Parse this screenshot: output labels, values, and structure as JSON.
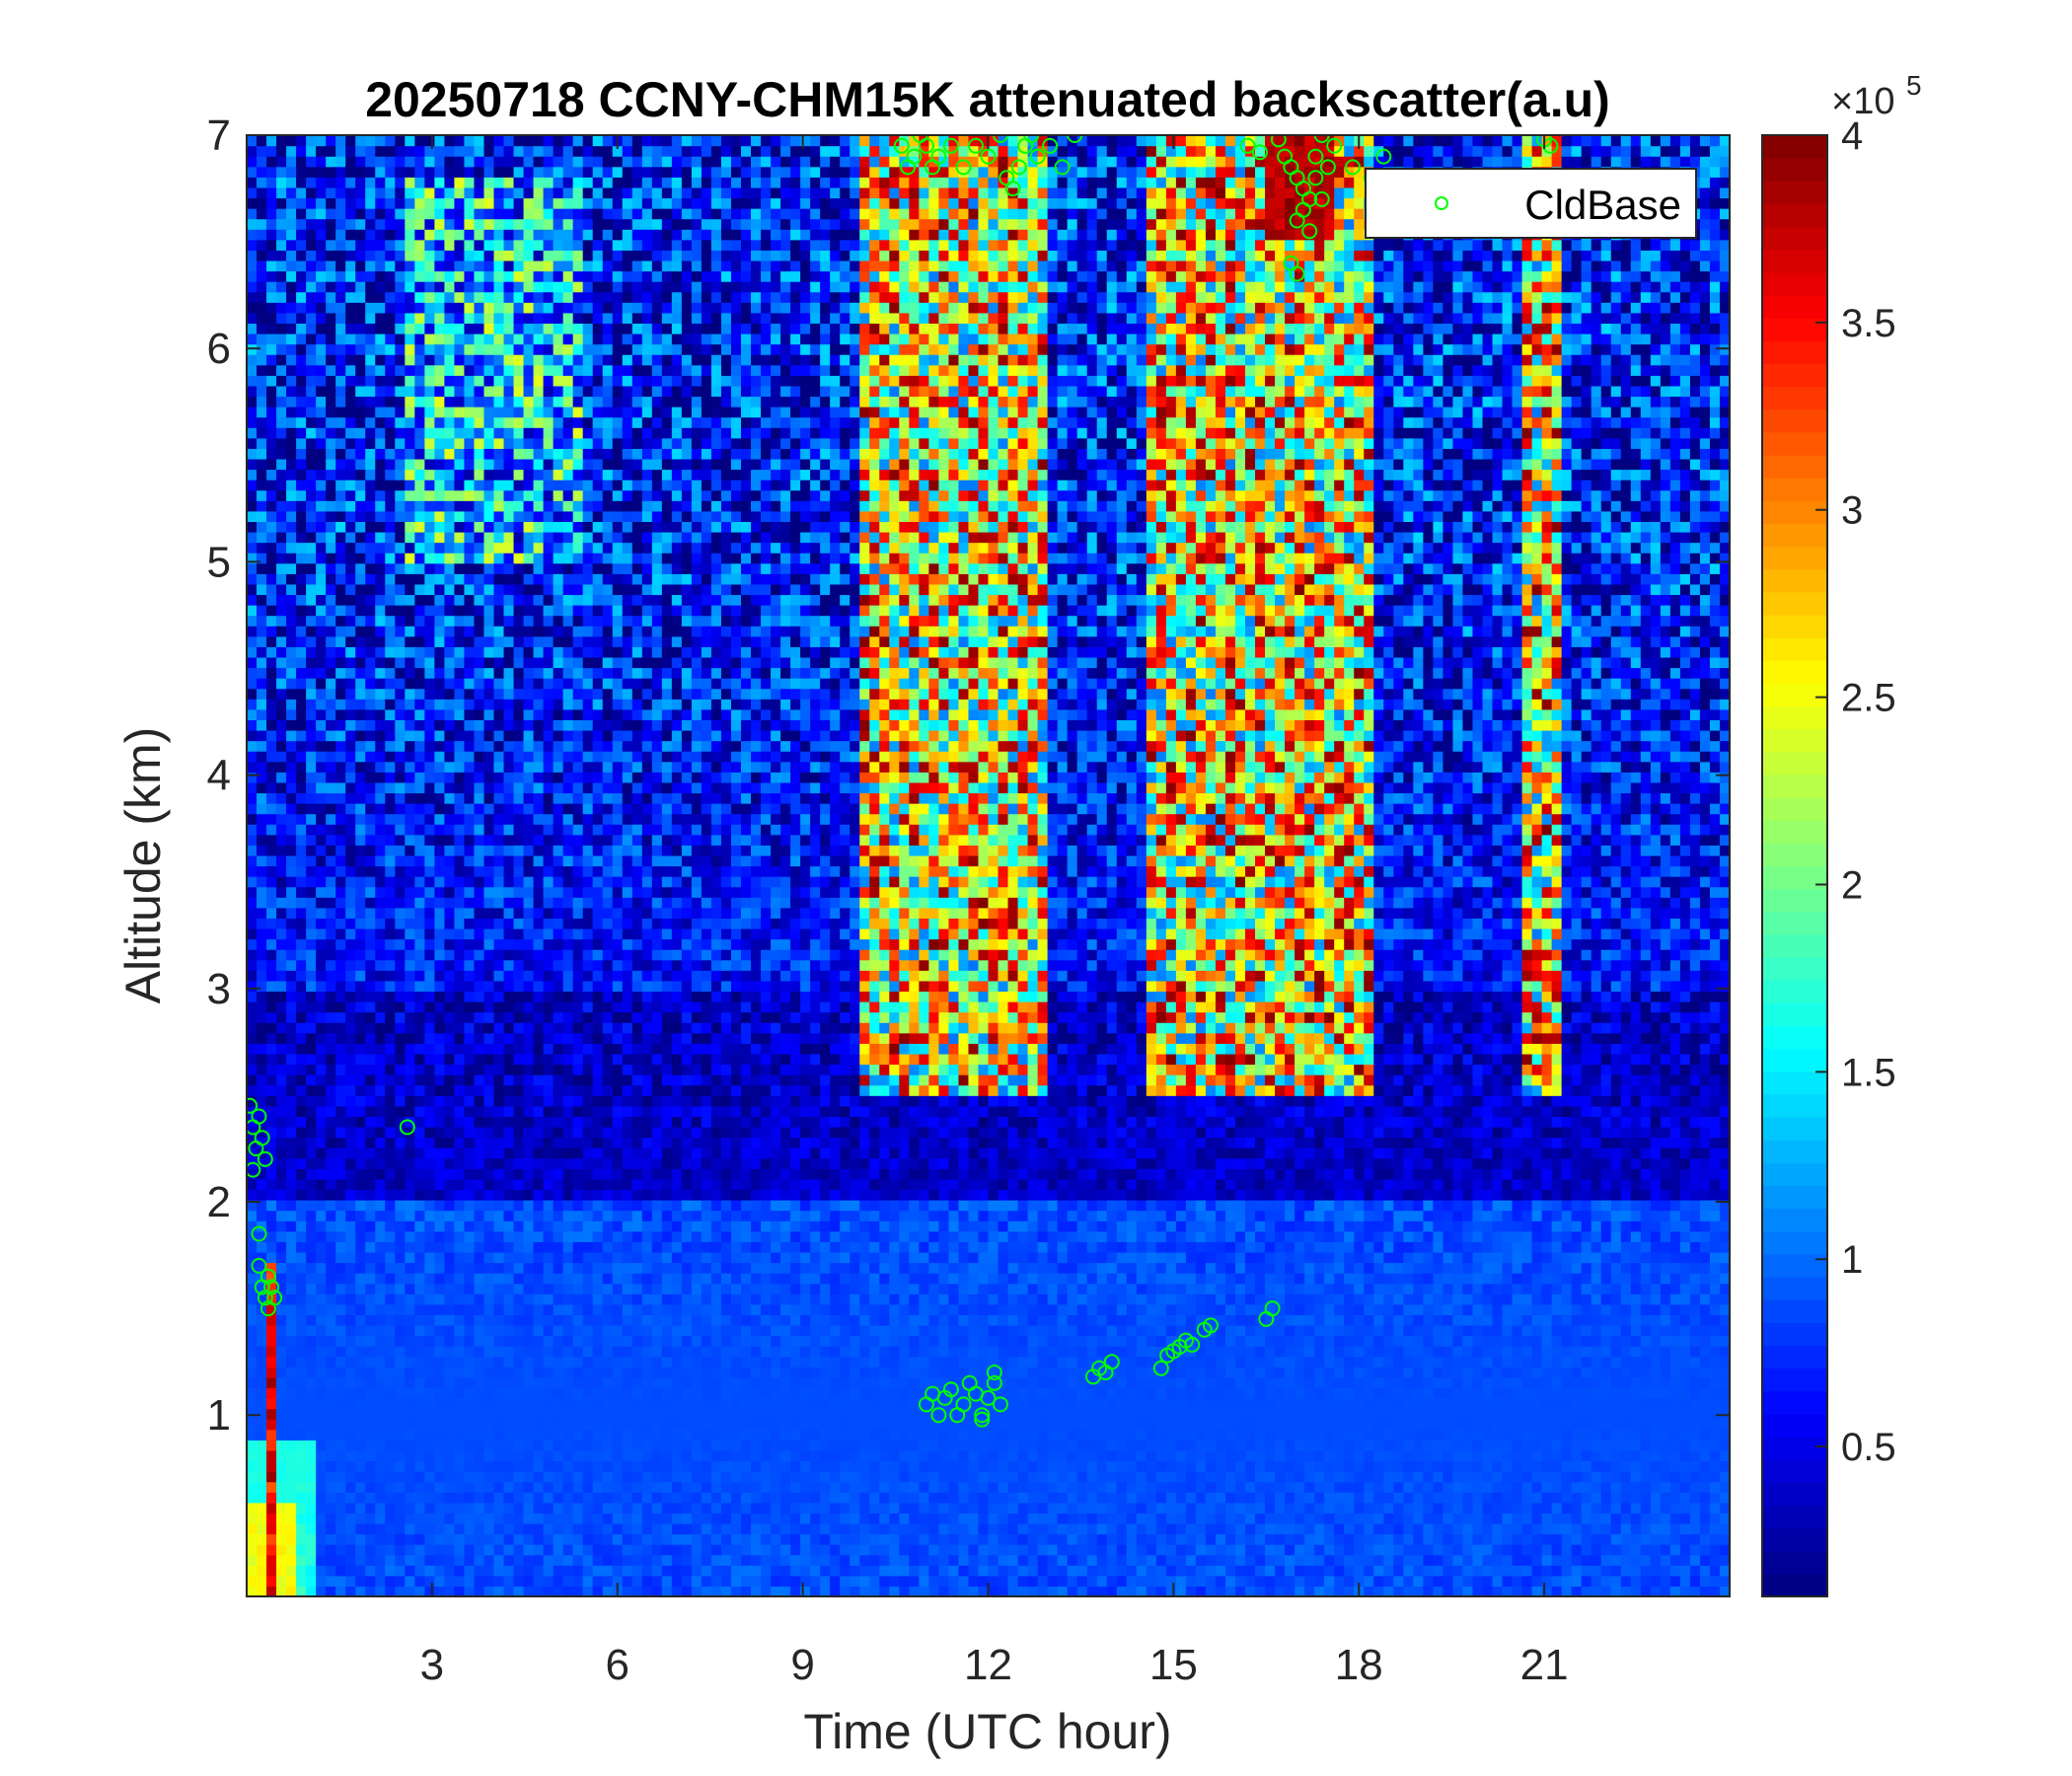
{
  "chart_data": {
    "type": "heatmap",
    "title": "20250718 CCNY-CHM15K attenuated backscatter(a.u)",
    "xlabel": "Time (UTC hour)",
    "ylabel": "Altitude (km)",
    "xlim": [
      0,
      24
    ],
    "ylim": [
      0.15,
      7
    ],
    "xticks": [
      3,
      6,
      9,
      12,
      15,
      18,
      21
    ],
    "yticks": [
      1,
      2,
      3,
      4,
      5,
      6,
      7
    ],
    "colorbar": {
      "colormap": "jet",
      "clim": [
        0.1,
        4
      ],
      "ticks": [
        0.5,
        1,
        1.5,
        2,
        2.5,
        3,
        3.5,
        4
      ],
      "tick_labels": [
        "0.5",
        "1",
        "1.5",
        "2",
        "2.5",
        "3",
        "3.5",
        "4"
      ],
      "exponent_prefix": "×10",
      "exponent_power": "5"
    },
    "legend": {
      "placement": "top-right",
      "entries": [
        "CldBase"
      ]
    },
    "series": [
      {
        "name": "CldBase",
        "marker": "open-circle",
        "color": "#00ff00",
        "x": [
          0.05,
          0.1,
          0.15,
          0.2,
          0.25,
          0.3,
          0.1,
          0.2,
          0.2,
          0.25,
          0.3,
          0.35,
          0.35,
          0.4,
          0.45,
          2.6,
          10.6,
          10.7,
          10.8,
          10.9,
          11.0,
          11.1,
          11.2,
          11.4,
          11.6,
          11.8,
          12.0,
          12.2,
          12.3,
          12.4,
          12.5,
          12.6,
          12.7,
          12.8,
          13.0,
          13.2,
          13.4,
          11.0,
          11.1,
          11.2,
          11.3,
          11.4,
          11.5,
          11.6,
          11.7,
          11.8,
          11.9,
          12.0,
          12.1,
          12.2,
          11.9,
          12.1,
          13.7,
          13.8,
          13.9,
          14.0,
          14.8,
          14.9,
          15.0,
          15.1,
          15.2,
          15.3,
          15.5,
          15.6,
          16.5,
          16.6,
          16.2,
          16.4,
          16.7,
          16.8,
          16.9,
          17.0,
          17.1,
          17.2,
          17.3,
          17.4,
          17.5,
          17.6,
          17.0,
          17.1,
          17.2,
          17.0,
          16.9,
          17.3,
          17.4,
          17.9,
          18.2,
          18.4,
          21.0,
          21.1
        ],
        "y": [
          2.45,
          2.35,
          2.25,
          2.4,
          2.3,
          2.2,
          2.15,
          1.85,
          1.7,
          1.6,
          1.55,
          1.65,
          1.5,
          1.6,
          1.55,
          2.35,
          6.95,
          6.85,
          6.9,
          7.0,
          6.95,
          6.85,
          6.9,
          6.95,
          6.85,
          6.95,
          6.9,
          7.0,
          6.8,
          6.75,
          6.85,
          6.95,
          7.0,
          6.9,
          6.95,
          6.85,
          7.0,
          1.05,
          1.1,
          1.0,
          1.08,
          1.12,
          1.0,
          1.05,
          1.15,
          1.1,
          1.0,
          1.08,
          1.2,
          1.05,
          0.98,
          1.15,
          1.18,
          1.22,
          1.2,
          1.25,
          1.22,
          1.28,
          1.3,
          1.32,
          1.35,
          1.33,
          1.4,
          1.42,
          1.45,
          1.5,
          6.95,
          6.92,
          6.98,
          6.9,
          6.85,
          6.8,
          6.75,
          6.7,
          6.9,
          7.0,
          6.85,
          6.95,
          6.6,
          6.65,
          6.55,
          6.35,
          6.4,
          6.8,
          6.7,
          6.85,
          6.8,
          6.9,
          6.98,
          6.95
        ]
      }
    ]
  }
}
